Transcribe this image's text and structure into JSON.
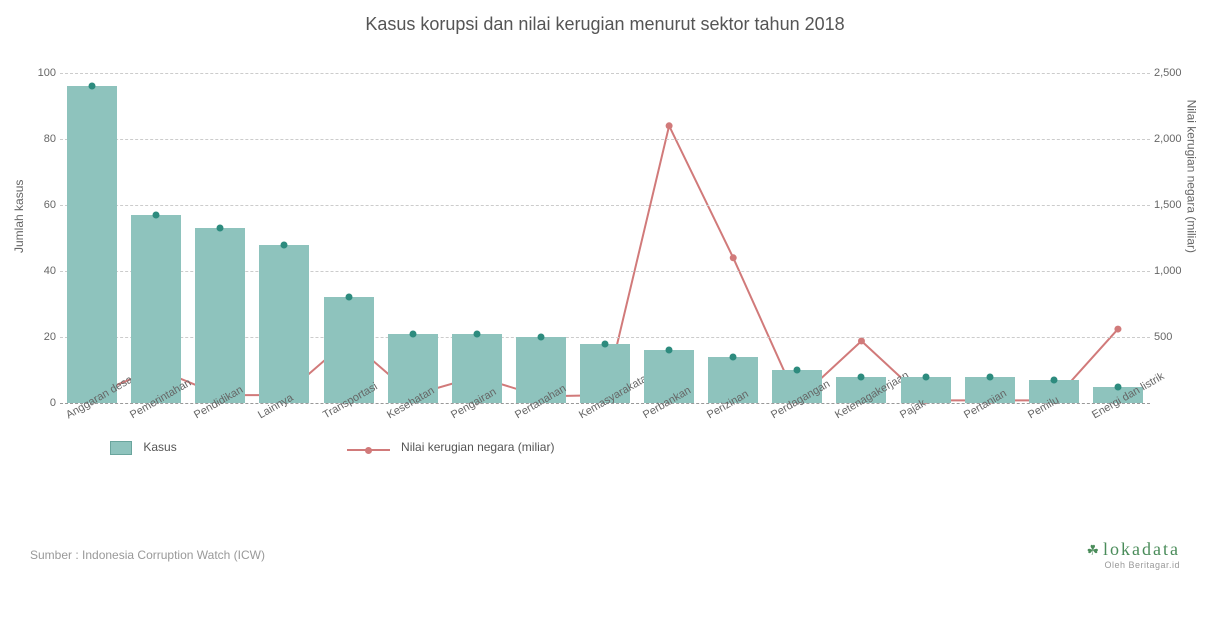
{
  "title": "Kasus korupsi dan nilai kerugian menurut sektor tahun 2018",
  "chart": {
    "type": "bar+line",
    "background_color": "#ffffff",
    "grid_color": "#cccccc",
    "categories": [
      "Anggaran desa",
      "Pemerintahan",
      "Pendidikan",
      "Lainnya",
      "Transportasi",
      "Kesehatan",
      "Pengairan",
      "Pertanahan",
      "Kemasyarakatan",
      "Perbankan",
      "Perizinan",
      "Perdagangan",
      "Ketenagakerjaan",
      "Pajak",
      "Pertanian",
      "Pemilu",
      "Energi dan listrik"
    ],
    "bars": {
      "label": "Kasus",
      "color": "#8ec3bd",
      "dot_color": "#2d8b7e",
      "values": [
        96,
        57,
        53,
        48,
        32,
        21,
        21,
        20,
        18,
        16,
        14,
        10,
        8,
        8,
        8,
        7,
        5
      ],
      "width_frac": 0.78
    },
    "line": {
      "label": "Nilai kerugian negara (miliar)",
      "color": "#d17a7a",
      "marker": "circle",
      "marker_size": 7,
      "values": [
        60,
        260,
        60,
        60,
        480,
        60,
        200,
        50,
        60,
        2100,
        1100,
        20,
        470,
        20,
        20,
        20,
        560
      ]
    },
    "y_left": {
      "label": "Jumlah kasus",
      "min": 0,
      "max": 100,
      "step": 20,
      "fontsize": 11,
      "color": "#666666"
    },
    "y_right": {
      "label": "Nilai kerugian negara (miliar)",
      "min": 0,
      "max": 2500,
      "step": 500,
      "fontsize": 11,
      "color": "#666666",
      "tick_format": "comma"
    },
    "title_fontsize": 18,
    "title_color": "#555555",
    "xlabel_fontsize": 11,
    "xlabel_rotation_deg": -30,
    "legend": {
      "bar_label": "Kasus",
      "line_label": "Nilai kerugian negara (miliar)"
    }
  },
  "source": "Sumber : Indonesia Corruption Watch (ICW)",
  "logo": {
    "brand": "lokadata",
    "sub": "Oleh Beritagar.id"
  }
}
